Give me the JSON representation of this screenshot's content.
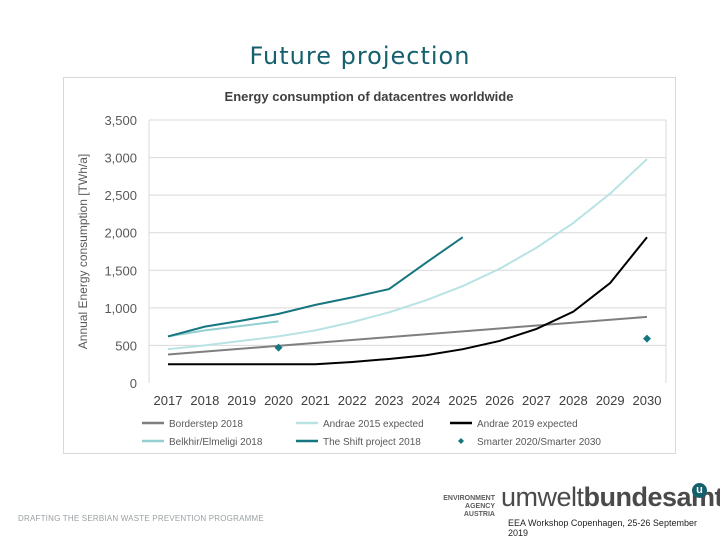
{
  "slide": {
    "title": "Future projection",
    "footer_left": "DRAFTING THE SERBIAN WASTE PREVENTION PROGRAMME",
    "logo": {
      "agency_line1": "ENVIRONMENT",
      "agency_line2": "AGENCY AUSTRIA",
      "brand_light": "umwelt",
      "brand_bold": "bundesamt",
      "brand_mark": "u"
    },
    "event": "EEA Workshop Copenhagen, 25-26 September 2019"
  },
  "chart_data": {
    "type": "line",
    "title": "Energy consumption of datacentres worldwide",
    "ylabel": "Annual Energy consumption [TWh/a]",
    "xlabel": "",
    "x": [
      2017,
      2018,
      2019,
      2020,
      2021,
      2022,
      2023,
      2024,
      2025,
      2026,
      2027,
      2028,
      2029,
      2030
    ],
    "yticks": [
      "3,500",
      "3,000",
      "2,500",
      "2,000",
      "1,500",
      "1,000",
      "500",
      "0"
    ],
    "ylim": [
      0,
      3500
    ],
    "grid": true,
    "legend_position": "bottom",
    "series": [
      {
        "name": "Borderstep 2018",
        "color": "#7f7f7f",
        "style": "line",
        "x": [
          2017,
          2030
        ],
        "y": [
          380,
          880
        ]
      },
      {
        "name": "Andrae 2015 expected",
        "color": "#b9e3e3",
        "style": "line",
        "x": [
          2017,
          2018,
          2019,
          2020,
          2021,
          2022,
          2023,
          2024,
          2025,
          2026,
          2027,
          2028,
          2029,
          2030
        ],
        "y": [
          450,
          500,
          560,
          620,
          700,
          810,
          940,
          1100,
          1290,
          1520,
          1800,
          2130,
          2520,
          2980
        ]
      },
      {
        "name": "Andrae 2019 expected",
        "color": "#000000",
        "style": "line",
        "x": [
          2017,
          2018,
          2019,
          2020,
          2021,
          2022,
          2023,
          2024,
          2025,
          2026,
          2027,
          2028,
          2029,
          2030
        ],
        "y": [
          250,
          250,
          250,
          250,
          250,
          280,
          320,
          370,
          450,
          560,
          720,
          950,
          1330,
          1940
        ]
      },
      {
        "name": "Belkhir/Elmeligi 2018",
        "color": "#93cfd0",
        "style": "line",
        "x": [
          2017,
          2018,
          2019,
          2020
        ],
        "y": [
          620,
          700,
          760,
          820
        ]
      },
      {
        "name": "The Shift project 2018",
        "color": "#16767f",
        "style": "line",
        "x": [
          2017,
          2018,
          2019,
          2020,
          2021,
          2022,
          2023,
          2024,
          2025
        ],
        "y": [
          620,
          750,
          830,
          920,
          1040,
          1140,
          1250,
          1600,
          1940
        ]
      },
      {
        "name": "Smarter 2020/Smarter 2030",
        "color": "#16767f",
        "style": "marker",
        "x": [
          2020,
          2030
        ],
        "y": [
          470,
          590
        ]
      }
    ]
  }
}
